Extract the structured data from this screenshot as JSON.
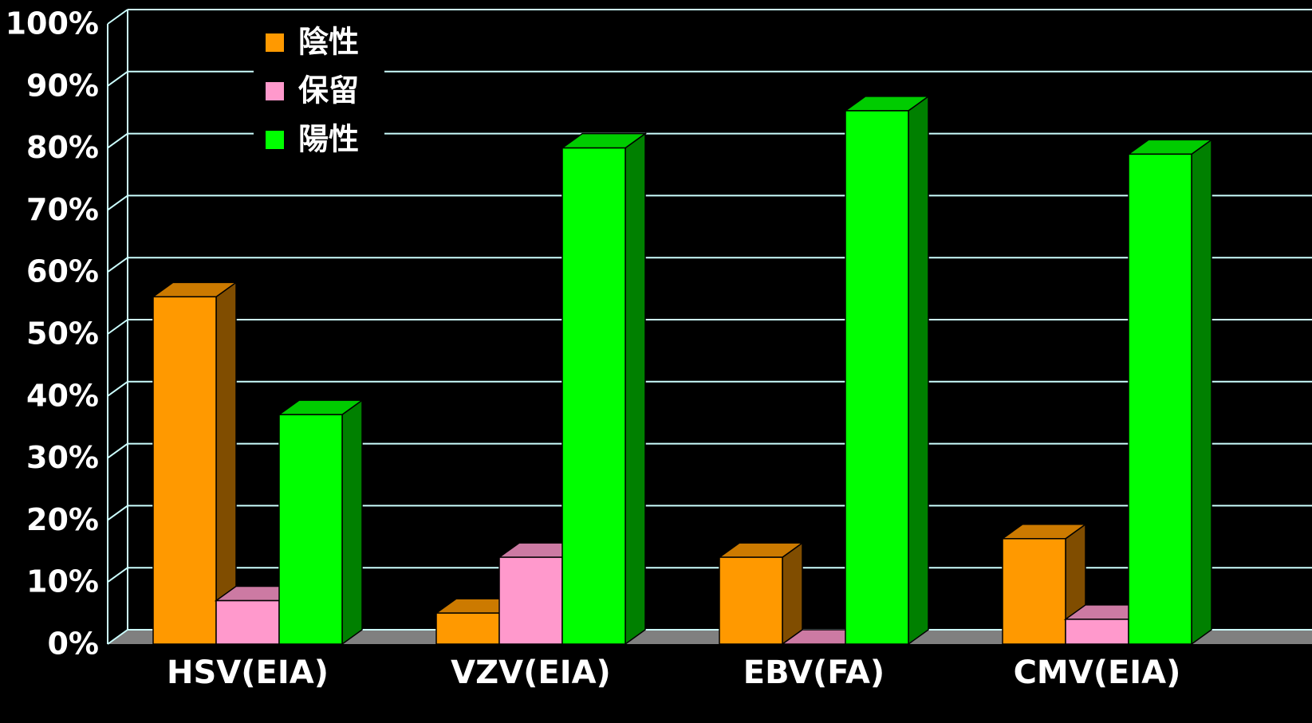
{
  "chart_data": {
    "type": "bar3d",
    "categories": [
      "HSV(EIA)",
      "VZV(EIA)",
      "EBV(FA)",
      "CMV(EIA)"
    ],
    "series": [
      {
        "name": "陰性",
        "color": "#ff9900",
        "values": [
          56,
          5,
          14,
          17
        ]
      },
      {
        "name": "保留",
        "color": "#ff99cc",
        "values": [
          7,
          14,
          0,
          4
        ]
      },
      {
        "name": "陽性",
        "color": "#00ff00",
        "values": [
          37,
          80,
          86,
          79
        ]
      }
    ],
    "ylim": [
      0,
      100
    ],
    "yticks": [
      {
        "value": 0,
        "label": "0%"
      },
      {
        "value": 10,
        "label": "10%"
      },
      {
        "value": 20,
        "label": "20%"
      },
      {
        "value": 30,
        "label": "30%"
      },
      {
        "value": 40,
        "label": "40%"
      },
      {
        "value": 50,
        "label": "50%"
      },
      {
        "value": 60,
        "label": "60%"
      },
      {
        "value": 70,
        "label": "70%"
      },
      {
        "value": 80,
        "label": "80%"
      },
      {
        "value": 90,
        "label": "90%"
      },
      {
        "value": 100,
        "label": "100%"
      }
    ],
    "grid": true
  }
}
